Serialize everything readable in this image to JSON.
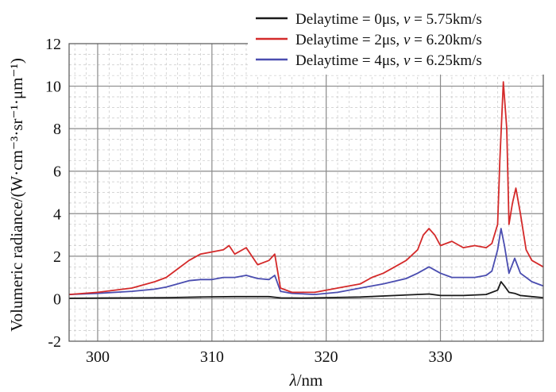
{
  "chart_data": {
    "type": "line",
    "xlabel_italic": "λ",
    "xlabel_rest": "/nm",
    "ylabel": "Volumeric radiance/(W·cm⁻³·sr⁻¹·μm⁻¹)",
    "xlim": [
      297.5,
      339
    ],
    "ylim": [
      -2,
      12
    ],
    "xticks": [
      300,
      310,
      320,
      330
    ],
    "yticks": [
      -2,
      0,
      2,
      4,
      6,
      8,
      10,
      12
    ],
    "legend_position": "top-right",
    "series": [
      {
        "name": "Delaytime = 0μs, v = 5.75km/s",
        "label_prefix": "Delaytime = 0μs, ",
        "label_var": "v",
        "label_suffix": " = 5.75km/s",
        "color": "#1a1a1a",
        "x": [
          297.5,
          300,
          303,
          306,
          309,
          312,
          315,
          316,
          318,
          320,
          323,
          326,
          328,
          329,
          330,
          332,
          334,
          335,
          335.3,
          335.6,
          336,
          336.5,
          337,
          338,
          339
        ],
        "y": [
          0.02,
          0.03,
          0.04,
          0.05,
          0.08,
          0.1,
          0.1,
          0.04,
          0.03,
          0.05,
          0.08,
          0.15,
          0.2,
          0.22,
          0.15,
          0.15,
          0.2,
          0.4,
          0.8,
          0.6,
          0.3,
          0.25,
          0.15,
          0.1,
          0.05
        ]
      },
      {
        "name": "Delaytime = 2μs, v = 6.20km/s",
        "label_prefix": "Delaytime = 2μs, ",
        "label_var": "v",
        "label_suffix": " = 6.20km/s",
        "color": "#d42a2a",
        "x": [
          297.5,
          300,
          303,
          305,
          306,
          307,
          308,
          309,
          310,
          311,
          311.5,
          312,
          313,
          314,
          315,
          315.5,
          316,
          317,
          319,
          321,
          323,
          324,
          325,
          326,
          327,
          328,
          328.5,
          329,
          329.5,
          330,
          331,
          332,
          333,
          334,
          334.5,
          335,
          335.2,
          335.5,
          335.8,
          336,
          336.3,
          336.6,
          337,
          337.5,
          338,
          339
        ],
        "y": [
          0.2,
          0.3,
          0.5,
          0.8,
          1.0,
          1.4,
          1.8,
          2.1,
          2.2,
          2.3,
          2.5,
          2.1,
          2.4,
          1.6,
          1.8,
          2.1,
          0.5,
          0.3,
          0.3,
          0.5,
          0.7,
          1.0,
          1.2,
          1.5,
          1.8,
          2.3,
          3.0,
          3.3,
          3.0,
          2.5,
          2.7,
          2.4,
          2.5,
          2.4,
          2.6,
          3.5,
          6.5,
          10.2,
          8.0,
          3.5,
          4.5,
          5.2,
          4.0,
          2.3,
          1.8,
          1.5
        ]
      },
      {
        "name": "Delaytime = 4μs, v = 6.25km/s",
        "label_prefix": "Delaytime = 4μs, ",
        "label_var": "v",
        "label_suffix": " = 6.25km/s",
        "color": "#4a4db0",
        "x": [
          297.5,
          300,
          303,
          305,
          306,
          307,
          308,
          309,
          310,
          311,
          312,
          313,
          314,
          315,
          315.5,
          316,
          317,
          319,
          321,
          323,
          325,
          327,
          328,
          329,
          330,
          331,
          332,
          333,
          334,
          334.5,
          335,
          335.3,
          335.6,
          336,
          336.5,
          337,
          338,
          339
        ],
        "y": [
          0.2,
          0.25,
          0.35,
          0.45,
          0.55,
          0.7,
          0.85,
          0.9,
          0.9,
          1.0,
          1.0,
          1.1,
          0.95,
          0.9,
          1.1,
          0.35,
          0.25,
          0.2,
          0.3,
          0.5,
          0.7,
          0.95,
          1.2,
          1.5,
          1.2,
          1.0,
          1.0,
          1.0,
          1.1,
          1.3,
          2.3,
          3.3,
          2.5,
          1.2,
          1.9,
          1.2,
          0.8,
          0.6
        ]
      }
    ]
  }
}
